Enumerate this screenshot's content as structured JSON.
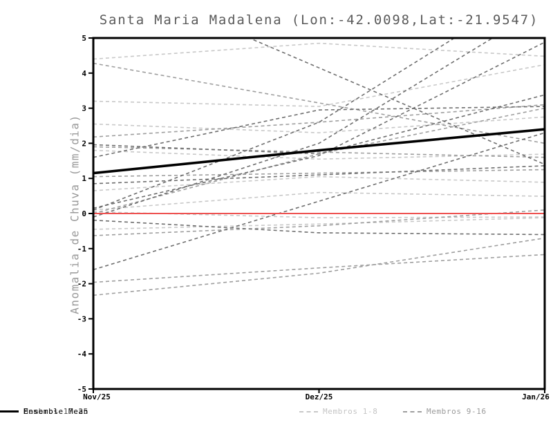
{
  "title": "Santa Maria Madalena (Lon:-42.0098,Lat:-21.9547)",
  "y_axis": {
    "label": "Anomalia de Chuva (mm/dia)",
    "ticks": [
      "5",
      "4",
      "3",
      "2",
      "1",
      "0",
      "-1",
      "-2",
      "-3",
      "-4",
      "-5"
    ],
    "min": -5,
    "max": 5
  },
  "x_axis": {
    "ticks": [
      "Nov/25",
      "Dez/25",
      "Jan/26"
    ]
  },
  "legend": [
    {
      "label": "Membros 1-8",
      "color": "#c8c8c8",
      "text_color": "#c4c4c4",
      "style": "dashed"
    },
    {
      "label": "Membros 9-16",
      "color": "#9e9e9e",
      "text_color": "#9a9a9a",
      "style": "dashed"
    },
    {
      "label": "Membros 17-25",
      "color": "#6e6e6e",
      "text_color": "#4a4a4a",
      "style": "dashed"
    },
    {
      "label": "Ensemble Mean",
      "color": "#000000",
      "text_color": "#000000",
      "style": "solid"
    }
  ],
  "colors": {
    "zero_line": "#ee5150",
    "mean_line": "#000000",
    "frame": "#000000",
    "title_text": "#5a5a5a",
    "axis_text": "#000000",
    "y_label_text": "#999999",
    "member_groups": {
      "1-8": "#c8c8c8",
      "9-16": "#9e9e9e",
      "17-25": "#6e6e6e"
    }
  },
  "chart_data": {
    "type": "line",
    "title": "Santa Maria Madalena (Lon:-42.0098,Lat:-21.9547)",
    "ylabel": "Anomalia de Chuva (mm/dia)",
    "x_categories": [
      "Nov/25",
      "Dez/25",
      "Jan/26"
    ],
    "ylim": [
      -5,
      5
    ],
    "grid": false,
    "legend_position": "bottom",
    "zero_line": 0,
    "ensemble_mean": [
      1.15,
      1.8,
      2.4
    ],
    "members": [
      {
        "id": 1,
        "group": "1-8",
        "values": [
          4.4,
          4.85,
          4.48
        ]
      },
      {
        "id": 2,
        "group": "1-8",
        "values": [
          3.2,
          3.05,
          4.24
        ]
      },
      {
        "id": 3,
        "group": "1-8",
        "values": [
          2.55,
          2.3,
          2.75
        ]
      },
      {
        "id": 4,
        "group": "1-8",
        "values": [
          1.8,
          1.55,
          1.69
        ]
      },
      {
        "id": 5,
        "group": "1-8",
        "values": [
          0.65,
          1.05,
          0.89
        ]
      },
      {
        "id": 6,
        "group": "1-8",
        "values": [
          0.05,
          -0.12,
          -0.1
        ]
      },
      {
        "id": 7,
        "group": "1-8",
        "values": [
          -0.45,
          -0.3,
          -0.12
        ]
      },
      {
        "id": 8,
        "group": "1-8",
        "values": [
          0.1,
          0.6,
          0.49
        ]
      },
      {
        "id": 9,
        "group": "9-16",
        "values": [
          -1.96,
          -1.55,
          -1.17
        ]
      },
      {
        "id": 10,
        "group": "9-16",
        "values": [
          -2.33,
          -1.7,
          -0.7
        ]
      },
      {
        "id": 11,
        "group": "9-16",
        "values": [
          -0.63,
          -0.35,
          0.1
        ]
      },
      {
        "id": 12,
        "group": "9-16",
        "values": [
          0.0,
          1.7,
          3.0
        ]
      },
      {
        "id": 13,
        "group": "9-16",
        "values": [
          2.18,
          2.6,
          3.1
        ]
      },
      {
        "id": 14,
        "group": "9-16",
        "values": [
          1.9,
          1.75,
          1.6
        ]
      },
      {
        "id": 15,
        "group": "9-16",
        "values": [
          1.05,
          1.15,
          1.25
        ]
      },
      {
        "id": 16,
        "group": "9-16",
        "values": [
          4.28,
          3.15,
          2.0
        ]
      },
      {
        "id": 17,
        "group": "17-25",
        "values": [
          6.9,
          4.15,
          1.4
        ]
      },
      {
        "id": 18,
        "group": "17-25",
        "values": [
          0.15,
          1.65,
          4.88
        ]
      },
      {
        "id": 19,
        "group": "17-25",
        "values": [
          0.1,
          2.6,
          6.6
        ]
      },
      {
        "id": 20,
        "group": "17-25",
        "values": [
          -0.1,
          2.0,
          5.9
        ]
      },
      {
        "id": 21,
        "group": "17-25",
        "values": [
          1.96,
          1.7,
          3.38
        ]
      },
      {
        "id": 22,
        "group": "17-25",
        "values": [
          1.6,
          2.95,
          3.05
        ]
      },
      {
        "id": 23,
        "group": "17-25",
        "values": [
          0.85,
          1.1,
          1.36
        ]
      },
      {
        "id": 24,
        "group": "17-25",
        "values": [
          -0.19,
          -0.55,
          -0.6
        ]
      },
      {
        "id": 25,
        "group": "17-25",
        "values": [
          -1.6,
          0.35,
          2.3
        ]
      }
    ]
  }
}
